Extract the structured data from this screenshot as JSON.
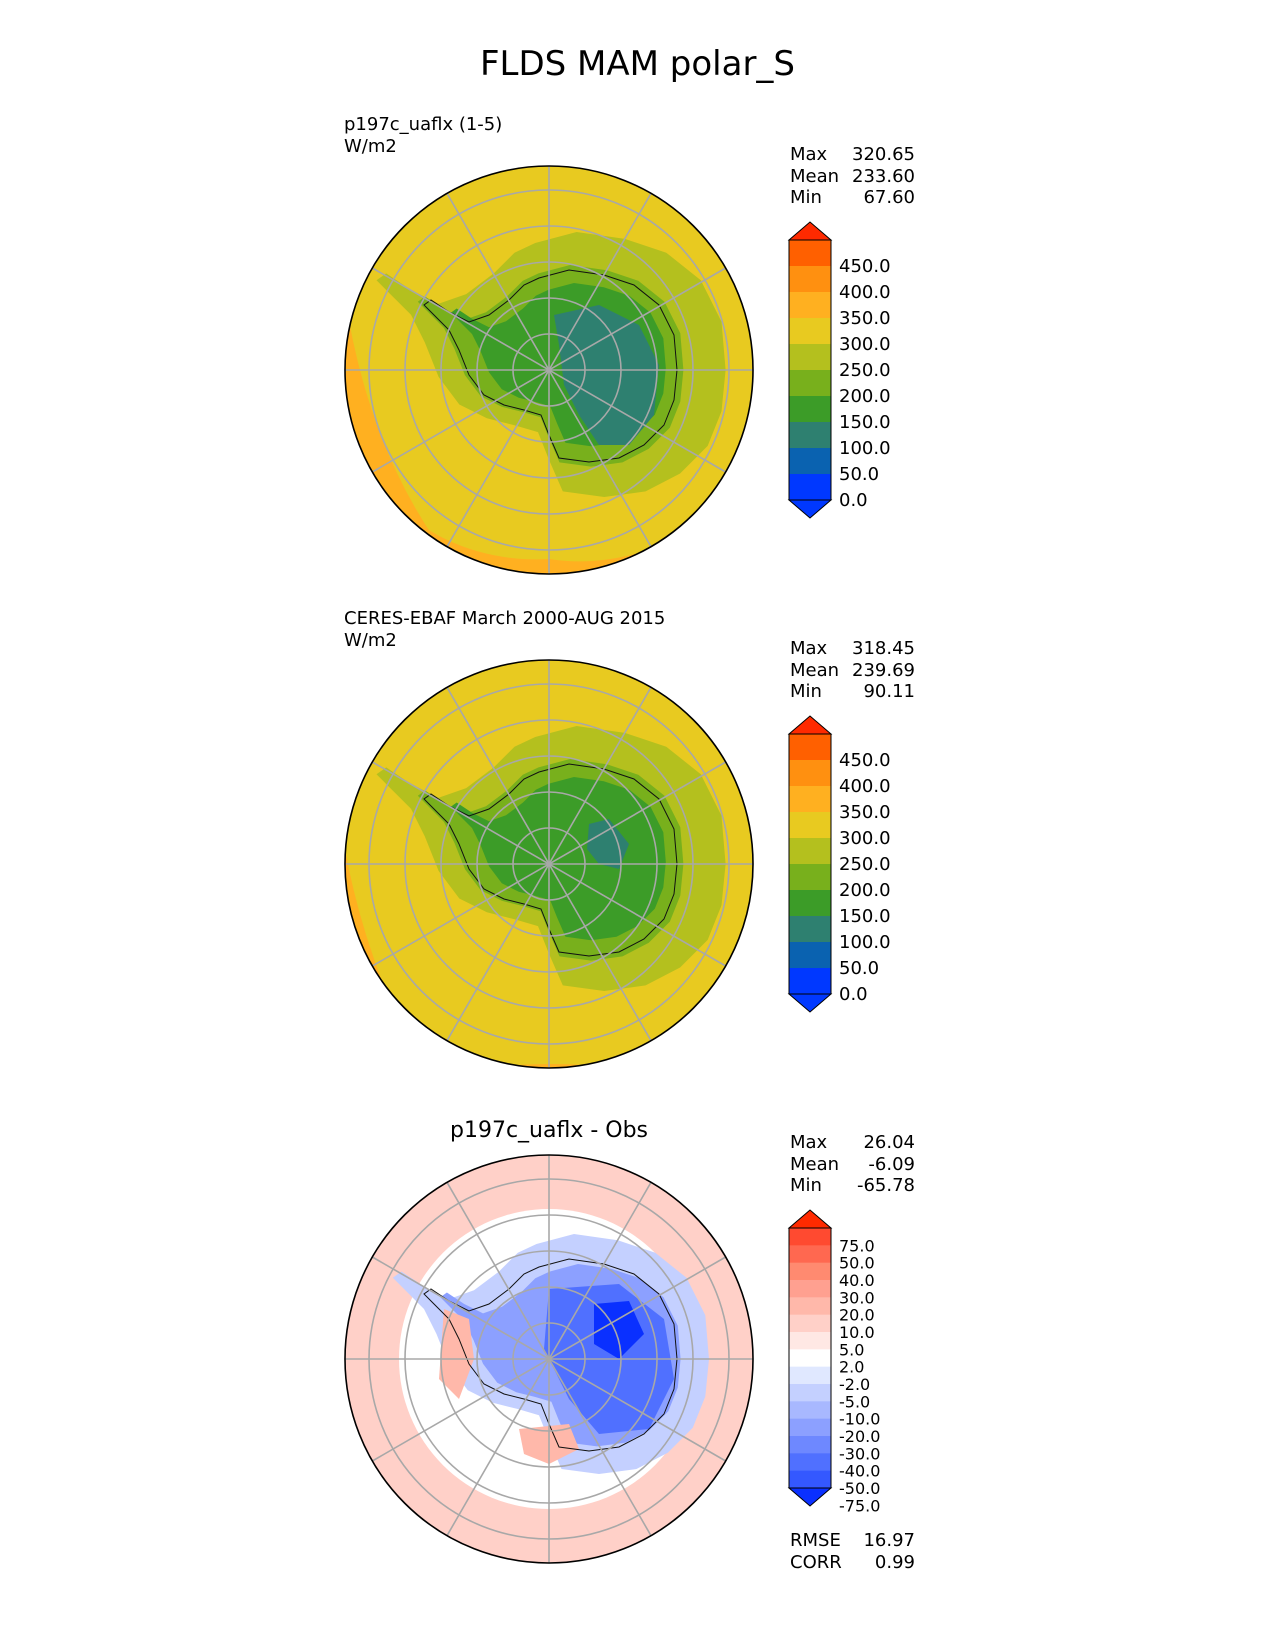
{
  "title": "FLDS MAM polar_S",
  "panels": [
    {
      "title_line1": "p197c_uaflx (1-5)",
      "title_line2": "W/m2",
      "stats": [
        {
          "label": "Max",
          "value": "320.65"
        },
        {
          "label": "Mean",
          "value": "233.60"
        },
        {
          "label": "Min",
          "value": "67.60"
        }
      ],
      "colorbar_ticks": [
        "450.0",
        "400.0",
        "350.0",
        "300.0",
        "250.0",
        "200.0",
        "150.0",
        "100.0",
        "50.0",
        "0.0"
      ],
      "colors": [
        "#ff2a00",
        "#ff6000",
        "#ff9010",
        "#ffb020",
        "#e8ca20",
        "#b4c01e",
        "#78b01c",
        "#3c9c28",
        "#2e8070",
        "#0a62b0",
        "#0038ff",
        "#0038ff"
      ]
    },
    {
      "title_line1": "CERES-EBAF March 2000-AUG 2015",
      "title_line2": "W/m2",
      "stats": [
        {
          "label": "Max",
          "value": "318.45"
        },
        {
          "label": "Mean",
          "value": "239.69"
        },
        {
          "label": "Min",
          "value": "90.11"
        }
      ],
      "colorbar_ticks": [
        "450.0",
        "400.0",
        "350.0",
        "300.0",
        "250.0",
        "200.0",
        "150.0",
        "100.0",
        "50.0",
        "0.0"
      ],
      "colors": [
        "#ff2a00",
        "#ff6000",
        "#ff9010",
        "#ffb020",
        "#e8ca20",
        "#b4c01e",
        "#78b01c",
        "#3c9c28",
        "#2e8070",
        "#0a62b0",
        "#0038ff",
        "#0038ff"
      ]
    },
    {
      "title": "p197c_uaflx - Obs",
      "stats": [
        {
          "label": "Max",
          "value": "26.04"
        },
        {
          "label": "Mean",
          "value": "-6.09"
        },
        {
          "label": "Min",
          "value": "-65.78"
        }
      ],
      "colorbar_ticks": [
        "75.0",
        "50.0",
        "40.0",
        "30.0",
        "20.0",
        "10.0",
        "5.0",
        "2.0",
        "-2.0",
        "-5.0",
        "-10.0",
        "-20.0",
        "-30.0",
        "-40.0",
        "-50.0",
        "-75.0"
      ],
      "colors": [
        "#ff2a00",
        "#ff4a30",
        "#ff6850",
        "#ff8a70",
        "#ffa090",
        "#ffb8aa",
        "#ffd0c8",
        "#ffe8e4",
        "#ffffff",
        "#e0e8ff",
        "#c4d0ff",
        "#a8b8ff",
        "#8ca0ff",
        "#6e88ff",
        "#5070ff",
        "#3458ff",
        "#0a30ff"
      ],
      "metrics": [
        {
          "label": "RMSE",
          "value": "16.97"
        },
        {
          "label": "CORR",
          "value": "0.99"
        }
      ]
    }
  ],
  "chart_data": [
    {
      "type": "heatmap",
      "title": "p197c_uaflx (1-5)",
      "units": "W/m2",
      "region": "polar_S",
      "max": 320.65,
      "mean": 233.6,
      "min": 67.6,
      "levels": [
        0,
        50,
        100,
        150,
        200,
        250,
        300,
        350,
        400,
        450
      ]
    },
    {
      "type": "heatmap",
      "title": "CERES-EBAF March 2000-AUG 2015",
      "units": "W/m2",
      "region": "polar_S",
      "max": 318.45,
      "mean": 239.69,
      "min": 90.11,
      "levels": [
        0,
        50,
        100,
        150,
        200,
        250,
        300,
        350,
        400,
        450
      ]
    },
    {
      "type": "heatmap",
      "title": "p197c_uaflx - Obs",
      "region": "polar_S",
      "max": 26.04,
      "mean": -6.09,
      "min": -65.78,
      "rmse": 16.97,
      "corr": 0.99,
      "levels": [
        -75,
        -50,
        -40,
        -30,
        -20,
        -10,
        -5,
        -2,
        2,
        5,
        10,
        20,
        30,
        40,
        50,
        75
      ]
    }
  ]
}
